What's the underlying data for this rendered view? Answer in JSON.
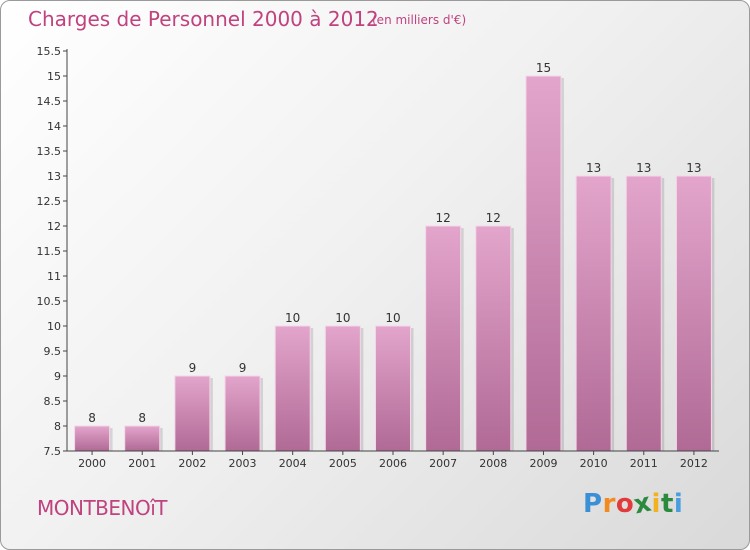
{
  "title": "Charges de Personnel 2000 à 2012",
  "subtitle": "(en milliers d'€)",
  "commune": "MONTBENOîT",
  "logo": {
    "letters": [
      "P",
      "r",
      "o",
      "x",
      "i",
      "t",
      "i"
    ],
    "colors": [
      "#3a8fd6",
      "#f28a1f",
      "#e23a3a",
      "#2b8a3e",
      "#f2b21f",
      "#2b8a3e",
      "#4a9ee0"
    ]
  },
  "colors": {
    "accent": "#c0427f",
    "bar_top": "#e3a5cc",
    "bar_bottom": "#b06a95"
  },
  "chart_data": {
    "type": "bar",
    "categories": [
      "2000",
      "2001",
      "2002",
      "2003",
      "2004",
      "2005",
      "2006",
      "2007",
      "2008",
      "2009",
      "2010",
      "2011",
      "2012"
    ],
    "values": [
      8,
      8,
      9,
      9,
      10,
      10,
      10,
      12,
      12,
      15,
      13,
      13,
      13
    ],
    "ylim": [
      7.5,
      15.5
    ],
    "yticks": [
      "7.5",
      "8",
      "8.5",
      "9",
      "9.5",
      "10",
      "10.5",
      "11",
      "11.5",
      "12",
      "12.5",
      "13",
      "13.5",
      "14",
      "14.5",
      "15",
      "15.5"
    ],
    "grid": false
  }
}
